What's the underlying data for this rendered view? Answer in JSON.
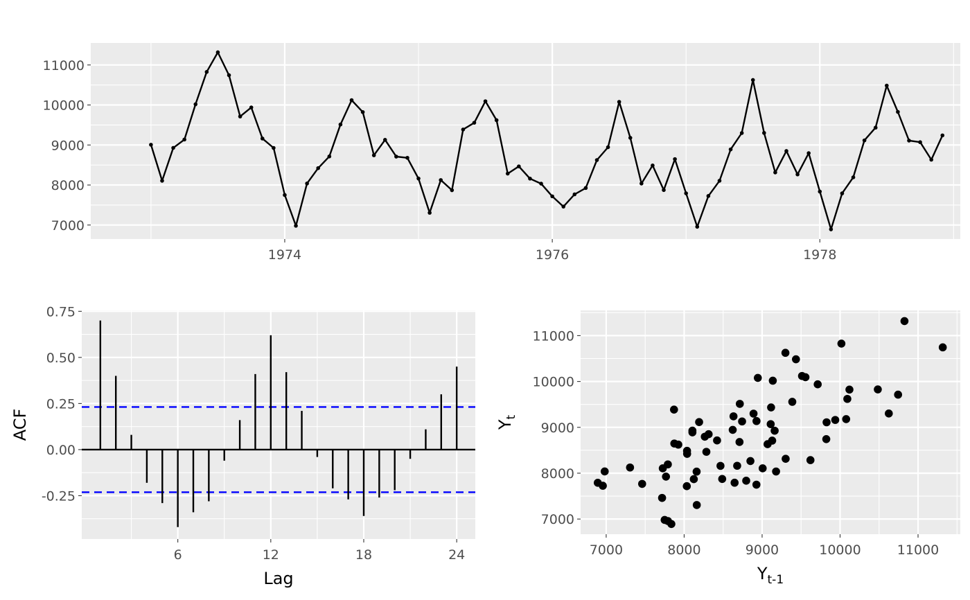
{
  "chart_data": [
    {
      "type": "line",
      "panel": "time-series",
      "title": "",
      "xlabel": "",
      "ylabel": "",
      "x_start": 1973.0,
      "x_step": 0.0833333,
      "x_ticks": [
        1974,
        1976,
        1978
      ],
      "x_tick_labels": [
        "1974",
        "1976",
        "1978"
      ],
      "xlim": [
        1972.55,
        1979.05
      ],
      "y_ticks": [
        7000,
        8000,
        9000,
        10000,
        11000
      ],
      "y_tick_labels": [
        "7000",
        "8000",
        "9000",
        "10000",
        "11000"
      ],
      "ylim": [
        6650,
        11550
      ],
      "grid": true,
      "line_color": "#000000",
      "values": [
        9007,
        8106,
        8928,
        9137,
        10017,
        10826,
        11317,
        10744,
        9713,
        9938,
        9161,
        8927,
        7750,
        6981,
        8038,
        8422,
        8714,
        9512,
        10120,
        9823,
        8743,
        9129,
        8710,
        8680,
        8162,
        7306,
        8124,
        7870,
        9387,
        9556,
        10093,
        9620,
        8285,
        8466,
        8160,
        8034,
        7717,
        7461,
        7767,
        7925,
        8623,
        8945,
        10078,
        9179,
        8037,
        8488,
        7874,
        8647,
        7792,
        6957,
        7726,
        8106,
        8890,
        9299,
        10625,
        9302,
        8314,
        8850,
        8265,
        8796,
        7836,
        6892,
        7791,
        8192,
        9115,
        9434,
        10484,
        9827,
        9110,
        9070,
        8633,
        9240
      ]
    },
    {
      "type": "bar",
      "panel": "acf",
      "title": "",
      "xlabel": "Lag",
      "ylabel": "ACF",
      "lags": [
        1,
        2,
        3,
        4,
        5,
        6,
        7,
        8,
        9,
        10,
        11,
        12,
        13,
        14,
        15,
        16,
        17,
        18,
        19,
        20,
        21,
        22,
        23,
        24
      ],
      "values": [
        0.7,
        0.4,
        0.08,
        -0.18,
        -0.29,
        -0.42,
        -0.34,
        -0.28,
        -0.06,
        0.16,
        0.41,
        0.62,
        0.42,
        0.21,
        -0.04,
        -0.21,
        -0.27,
        -0.36,
        -0.26,
        -0.22,
        -0.05,
        0.11,
        0.3,
        0.45
      ],
      "x_ticks": [
        6,
        12,
        18,
        24
      ],
      "x_tick_labels": [
        "6",
        "12",
        "18",
        "24"
      ],
      "xlim": [
        -0.2,
        25.2
      ],
      "y_ticks": [
        -0.25,
        0.0,
        0.25,
        0.5,
        0.75
      ],
      "y_tick_labels": [
        "-0.25",
        "0.00",
        "0.25",
        "0.50",
        "0.75"
      ],
      "ylim": [
        -0.485,
        0.755
      ],
      "conf_limit": 0.231,
      "conf_color": "#0000FF",
      "grid": true
    },
    {
      "type": "scatter",
      "panel": "lag-plot",
      "title": "",
      "xlabel": "Y",
      "xlabel_sub": "t-1",
      "ylabel": "Y",
      "ylabel_sub": "t",
      "x_ticks": [
        7000,
        8000,
        9000,
        10000,
        11000
      ],
      "x_tick_labels": [
        "7000",
        "8000",
        "9000",
        "10000",
        "11000"
      ],
      "xlim": [
        6672,
        11542
      ],
      "y_ticks": [
        7000,
        8000,
        9000,
        10000,
        11000
      ],
      "y_tick_labels": [
        "7000",
        "8000",
        "9000",
        "10000",
        "11000"
      ],
      "ylim": [
        6670,
        11550
      ],
      "grid": true,
      "point_color": "#000000",
      "points": [
        [
          9007,
          8106
        ],
        [
          8106,
          8928
        ],
        [
          8928,
          9137
        ],
        [
          9137,
          10017
        ],
        [
          10017,
          10826
        ],
        [
          10826,
          11317
        ],
        [
          11317,
          10744
        ],
        [
          10744,
          9713
        ],
        [
          9713,
          9938
        ],
        [
          9938,
          9161
        ],
        [
          9161,
          8927
        ],
        [
          8927,
          7750
        ],
        [
          7750,
          6981
        ],
        [
          6981,
          8038
        ],
        [
          8038,
          8422
        ],
        [
          8422,
          8714
        ],
        [
          8714,
          9512
        ],
        [
          9512,
          10120
        ],
        [
          10120,
          9823
        ],
        [
          9823,
          8743
        ],
        [
          8743,
          9129
        ],
        [
          9129,
          8710
        ],
        [
          8710,
          8680
        ],
        [
          8680,
          8162
        ],
        [
          8162,
          7306
        ],
        [
          7306,
          8124
        ],
        [
          8124,
          7870
        ],
        [
          7870,
          9387
        ],
        [
          9387,
          9556
        ],
        [
          9556,
          10093
        ],
        [
          10093,
          9620
        ],
        [
          9620,
          8285
        ],
        [
          8285,
          8466
        ],
        [
          8466,
          8160
        ],
        [
          8160,
          8034
        ],
        [
          8034,
          7717
        ],
        [
          7717,
          7461
        ],
        [
          7461,
          7767
        ],
        [
          7767,
          7925
        ],
        [
          7925,
          8623
        ],
        [
          8623,
          8945
        ],
        [
          8945,
          10078
        ],
        [
          10078,
          9179
        ],
        [
          9179,
          8037
        ],
        [
          8037,
          8488
        ],
        [
          8488,
          7874
        ],
        [
          7874,
          8647
        ],
        [
          8647,
          7792
        ],
        [
          7792,
          6957
        ],
        [
          6957,
          7726
        ],
        [
          7726,
          8106
        ],
        [
          8106,
          8890
        ],
        [
          8890,
          9299
        ],
        [
          9299,
          10625
        ],
        [
          10625,
          9302
        ],
        [
          9302,
          8314
        ],
        [
          8314,
          8850
        ],
        [
          8850,
          8265
        ],
        [
          8265,
          8796
        ],
        [
          8796,
          7836
        ],
        [
          7836,
          6892
        ],
        [
          6892,
          7791
        ],
        [
          7791,
          8192
        ],
        [
          8192,
          9115
        ],
        [
          9115,
          9434
        ],
        [
          9434,
          10484
        ],
        [
          10484,
          9827
        ],
        [
          9827,
          9110
        ],
        [
          9110,
          9070
        ],
        [
          9070,
          8633
        ],
        [
          8633,
          9240
        ]
      ]
    }
  ]
}
